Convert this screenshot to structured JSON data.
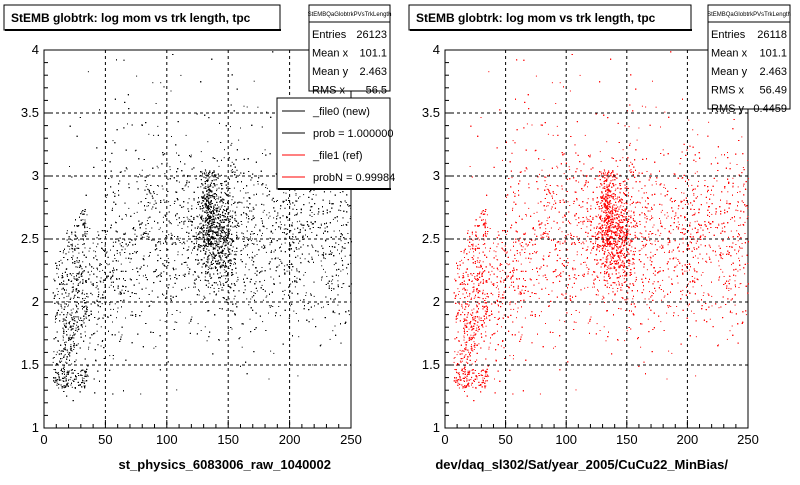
{
  "panels": [
    {
      "title": "StEMB globtrk: log mom vs trk length, tpc",
      "xlabel": "st_physics_6083006_raw_1040002",
      "stats": {
        "name": "StEMBQaGlobtrkPVsTrkLength",
        "rows": [
          {
            "label": "Entries",
            "value": "26123"
          },
          {
            "label": "Mean x",
            "value": "101.1"
          },
          {
            "label": "Mean y",
            "value": "2.463"
          },
          {
            "label": "RMS x",
            "value": "56.5"
          }
        ]
      },
      "legend": [
        {
          "label": "_file0 (new)",
          "color": "#000000"
        },
        {
          "label": "prob = 1.000000",
          "color": "#000000"
        },
        {
          "label": "_file1 (ref)",
          "color": "#ff0000"
        },
        {
          "label": "probN = 0.99984",
          "color": "#ff0000"
        }
      ]
    },
    {
      "title": "StEMB globtrk: log mom vs trk length, tpc",
      "xlabel": "dev/daq_sl302/Sat/year_2005/CuCu22_MinBias/",
      "stats": {
        "name": "StEMBQaGlobtrkPVsTrkLength",
        "rows": [
          {
            "label": "Entries",
            "value": "26118"
          },
          {
            "label": "Mean x",
            "value": "101.1"
          },
          {
            "label": "Mean y",
            "value": "2.463"
          },
          {
            "label": "RMS x",
            "value": "56.49"
          },
          {
            "label": "RMS y",
            "value": "0.4459"
          }
        ]
      }
    }
  ],
  "chart_data": [
    {
      "type": "scatter",
      "title": "StEMB globtrk: log mom vs trk length, tpc",
      "xlabel": "st_physics_6083006_raw_1040002",
      "ylabel": "",
      "xlim": [
        0,
        250
      ],
      "ylim": [
        1,
        4
      ],
      "xticks": [
        0,
        50,
        100,
        150,
        200,
        250
      ],
      "yticks": [
        1,
        1.5,
        2,
        2.5,
        3,
        3.5,
        4
      ],
      "grid": true,
      "point_color": "#000000",
      "entries": 26123,
      "mean_x": 101.1,
      "mean_y": 2.463,
      "rms_x": 56.5
    },
    {
      "type": "scatter",
      "title": "StEMB globtrk: log mom vs trk length, tpc",
      "xlabel": "dev/daq_sl302/Sat/year_2005/CuCu22_MinBias/",
      "ylabel": "",
      "xlim": [
        0,
        250
      ],
      "ylim": [
        1,
        4
      ],
      "xticks": [
        0,
        50,
        100,
        150,
        200,
        250
      ],
      "yticks": [
        1,
        1.5,
        2,
        2.5,
        3,
        3.5,
        4
      ],
      "grid": true,
      "point_color": "#ff0000",
      "entries": 26118,
      "mean_x": 101.1,
      "mean_y": 2.463,
      "rms_x": 56.49,
      "rms_y": 0.4459
    }
  ]
}
